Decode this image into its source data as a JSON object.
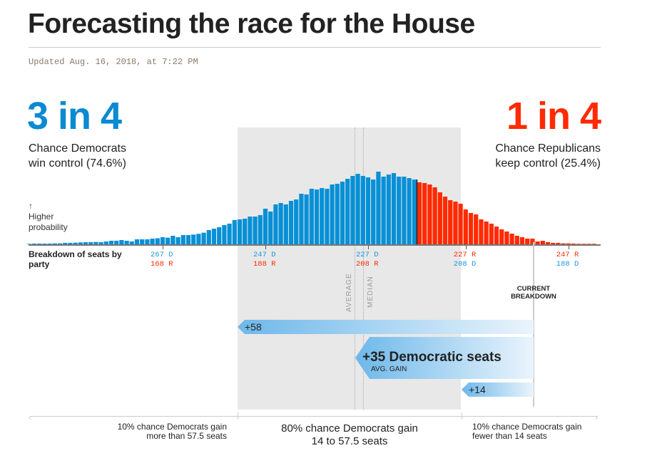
{
  "header": {
    "title": "Forecasting the race for the House",
    "updated": "Updated Aug. 16, 2018, at 7:22 PM"
  },
  "dem": {
    "odds": "3 in 4",
    "line1": "Chance Democrats",
    "line2": "win control (74.6%)",
    "color": "#0a8ad1"
  },
  "rep": {
    "odds": "1 in 4",
    "line1": "Chance Republicans",
    "line2": "keep control (25.4%)",
    "color": "#ff2a00"
  },
  "y_hint": {
    "arrow": "↑",
    "line1": "Higher",
    "line2": "probability"
  },
  "breakdown_label": "Breakdown of seats by party",
  "ticks": [
    {
      "top": "267 D",
      "bottom": "168 R",
      "dem": 267
    },
    {
      "top": "247 D",
      "bottom": "188 R",
      "dem": 247
    },
    {
      "top": "227 D",
      "bottom": "208 R",
      "dem": 227
    },
    {
      "top": "227 R",
      "bottom": "208 D",
      "dem": 208
    },
    {
      "top": "247 R",
      "bottom": "188 D",
      "dem": 188
    }
  ],
  "markers": {
    "average": "AVERAGE",
    "median": "MEDIAN",
    "current": "CURRENT BREAKDOWN"
  },
  "gains": {
    "high": "+58",
    "avg": "+35 Democratic seats",
    "avg_sub": "AVG. GAIN",
    "low": "+14"
  },
  "bottom": {
    "left1": "10% chance Democrats gain",
    "left2": "more than 57.5 seats",
    "mid1": "80% chance Democrats gain",
    "mid2": "14 to 57.5 seats",
    "right1": "10% chance Democrats gain",
    "right2": "fewer than 14 seats"
  },
  "chart_data": {
    "type": "bar",
    "title": "Forecasting the race for the House",
    "xlabel": "Democratic seats",
    "ylabel": "Higher probability (relative)",
    "x_start_dem_seats": 293,
    "x_end_dem_seats": 183,
    "majority_threshold_dem": 218,
    "values": [
      0.7,
      1,
      1,
      1,
      1,
      1.3,
      1.3,
      2,
      2,
      2.3,
      2.7,
      3,
      3,
      3.3,
      3,
      4,
      5,
      5,
      6,
      5,
      4,
      7,
      7,
      7,
      8,
      8.5,
      10,
      9.3,
      12,
      10,
      13,
      13,
      13.7,
      14.7,
      16.3,
      20,
      22,
      24,
      27,
      29,
      34,
      35,
      36,
      39,
      39,
      41,
      50,
      46,
      56,
      58,
      56,
      61,
      63,
      71,
      70,
      78,
      77,
      79,
      78,
      84,
      85,
      88,
      92,
      96,
      99,
      96,
      94,
      91,
      102,
      95,
      98,
      100,
      95,
      95,
      93,
      91,
      87,
      86,
      84,
      80,
      73,
      67,
      62,
      60,
      57,
      49,
      44,
      42,
      35,
      32,
      29,
      25,
      21,
      18,
      15,
      12,
      10,
      8,
      8,
      4,
      5,
      3,
      2,
      2,
      1.3,
      1.3,
      1,
      0.7,
      0.7,
      0.7,
      0.7
    ],
    "colors": {
      "dem": "#0790d6",
      "rep": "#ff2a00"
    }
  }
}
